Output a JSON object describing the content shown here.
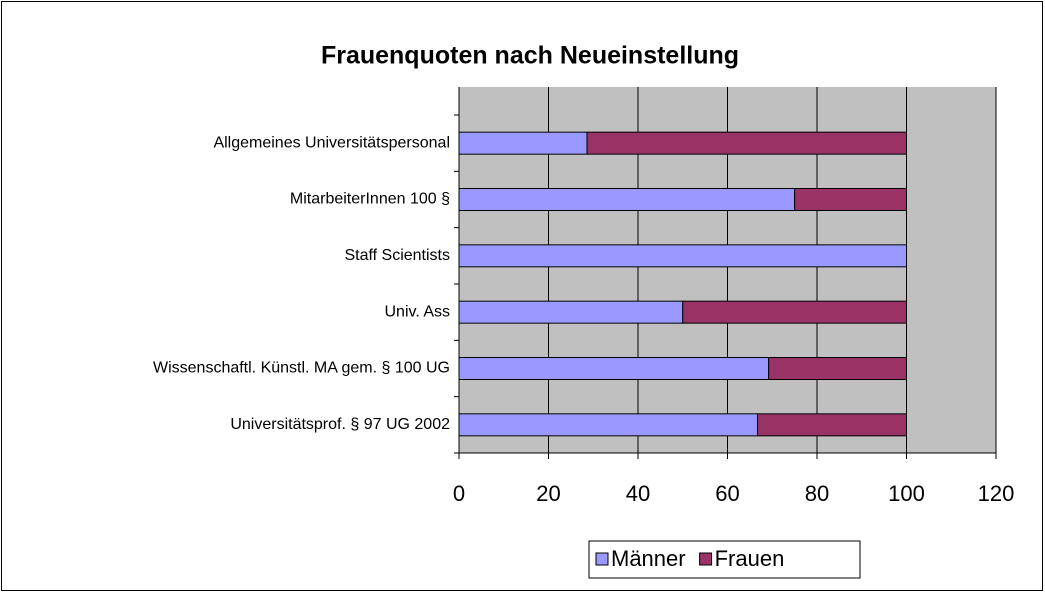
{
  "chart_data": {
    "type": "bar",
    "orientation": "horizontal",
    "stacked": true,
    "title": "Frauenquoten nach Neueinstellung",
    "categories": [
      "Allgemeines Universitätspersonal",
      "MitarbeiterInnen 100 §",
      "Staff Scientists",
      "Univ. Ass",
      "Wissenschaftl. Künstl. MA gem. § 100 UG",
      "Universitätsprof. § 97 UG 2002"
    ],
    "series": [
      {
        "name": "Männer",
        "color": "#9999ff",
        "values": [
          28.6,
          75,
          100,
          50,
          69.2,
          66.7
        ]
      },
      {
        "name": "Frauen",
        "color": "#993366",
        "values": [
          71.4,
          25,
          0,
          50,
          30.8,
          33.3
        ]
      }
    ],
    "xlim": [
      0,
      120
    ],
    "xticks": [
      0,
      20,
      40,
      60,
      80,
      100,
      120
    ],
    "grid": true,
    "legend": "bottom"
  }
}
